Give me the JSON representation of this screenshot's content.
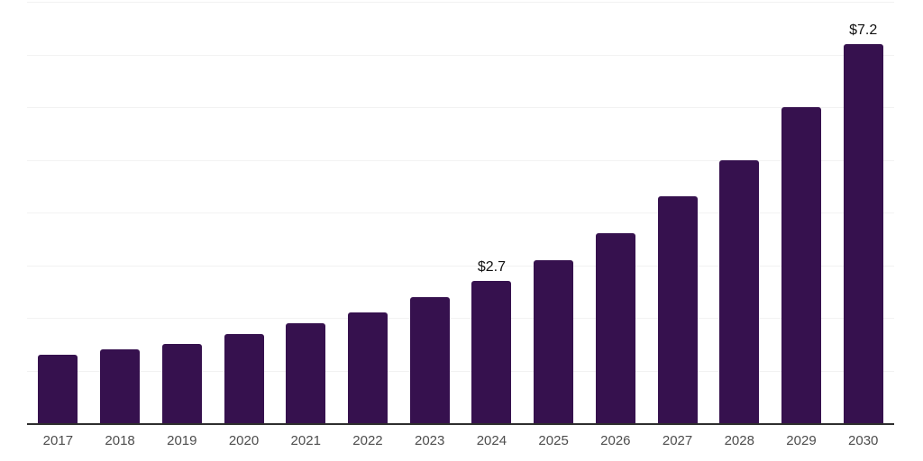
{
  "chart_data": {
    "type": "bar",
    "title": "",
    "xlabel": "",
    "ylabel": "",
    "categories": [
      "2017",
      "2018",
      "2019",
      "2020",
      "2021",
      "2022",
      "2023",
      "2024",
      "2025",
      "2026",
      "2027",
      "2028",
      "2029",
      "2030"
    ],
    "values": [
      1.3,
      1.4,
      1.5,
      1.7,
      1.9,
      2.1,
      2.4,
      2.7,
      3.1,
      3.6,
      4.3,
      5.0,
      6.0,
      7.2
    ],
    "bar_labels": [
      "",
      "",
      "",
      "",
      "",
      "",
      "",
      "$2.7",
      "",
      "",
      "",
      "",
      "",
      "$7.2"
    ],
    "ylim": [
      0,
      8
    ],
    "gridline_step": 1,
    "grid": "horizontal",
    "legend": "none",
    "y_tick_labels_visible": false,
    "colors": {
      "bar": "#36114e",
      "gridline": "#f2f2f2",
      "axis_line": "#2e2e2e",
      "tick_label": "#4d4d4d",
      "data_label": "#111111",
      "background": "#ffffff"
    }
  }
}
